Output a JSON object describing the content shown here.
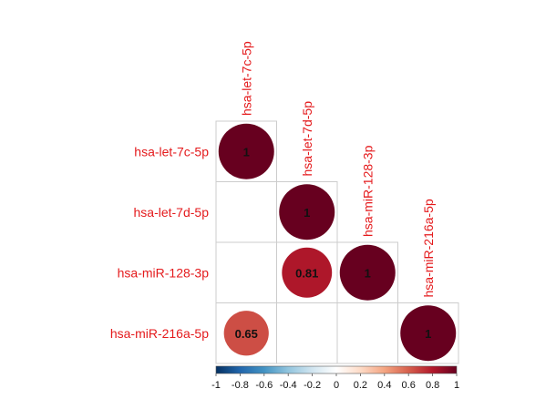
{
  "chart_data": {
    "type": "heatmap",
    "variables": [
      "hsa-let-7c-5p",
      "hsa-let-7d-5p",
      "hsa-miR-128-3p",
      "hsa-miR-216a-5p"
    ],
    "matrix": [
      [
        1,
        null,
        null,
        null
      ],
      [
        null,
        1,
        null,
        null
      ],
      [
        null,
        0.81,
        1,
        null
      ],
      [
        0.65,
        null,
        null,
        1
      ]
    ],
    "value_labels": [
      [
        "1",
        "",
        "",
        ""
      ],
      [
        "",
        "1",
        "",
        ""
      ],
      [
        "",
        "0.81",
        "1",
        ""
      ],
      [
        "0.65",
        "",
        "",
        "1"
      ]
    ],
    "color_scale": {
      "range": [
        -1,
        1
      ],
      "ticks": [
        "-1",
        "-0.8",
        "-0.6",
        "-0.4",
        "-0.2",
        "0",
        "0.2",
        "0.4",
        "0.6",
        "0.8",
        "1"
      ],
      "tick_values": [
        -1,
        -0.8,
        -0.6,
        -0.4,
        -0.2,
        0,
        0.2,
        0.4,
        0.6,
        0.8,
        1
      ],
      "colors": [
        "#053061",
        "#2166ac",
        "#4393c3",
        "#92c5de",
        "#d1e5f0",
        "#ffffff",
        "#fddbc7",
        "#f4a582",
        "#d6604d",
        "#b2182b",
        "#67001f"
      ],
      "legend_position": "bottom"
    },
    "label_color": "#e41a1c",
    "layout_shape": "lower-triangle"
  }
}
